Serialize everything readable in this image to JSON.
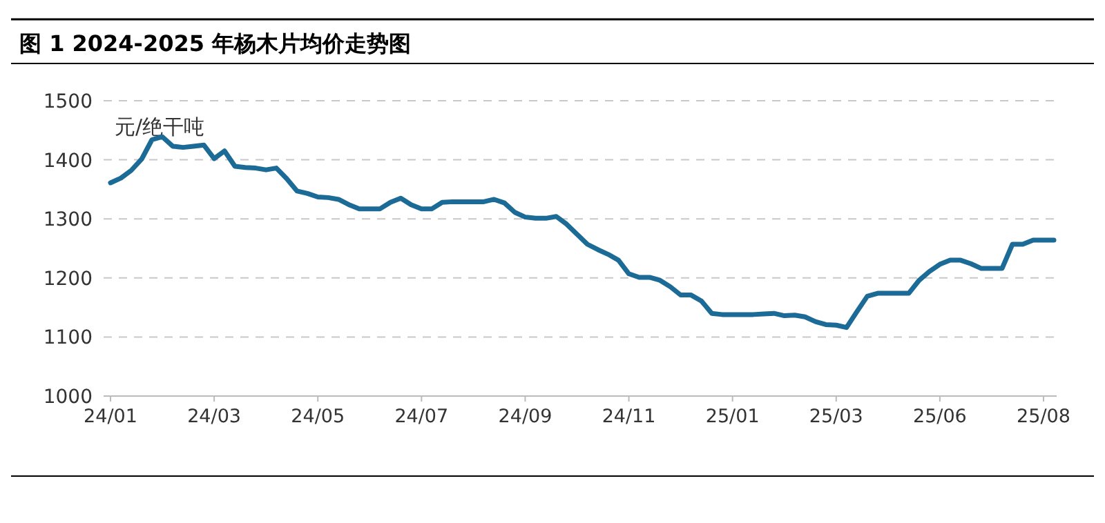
{
  "chart_data": {
    "type": "line",
    "title": "图 1 2024-2025 年杨木片均价走势图",
    "ylabel": "元/绝干吨",
    "categories": [
      "24/01",
      null,
      null,
      null,
      null,
      null,
      null,
      null,
      null,
      null,
      "24/03",
      null,
      null,
      null,
      null,
      null,
      null,
      null,
      null,
      null,
      "24/05",
      null,
      null,
      null,
      null,
      null,
      null,
      null,
      null,
      null,
      "24/07",
      null,
      null,
      null,
      null,
      null,
      null,
      null,
      null,
      null,
      "24/09",
      null,
      null,
      null,
      null,
      null,
      null,
      null,
      null,
      null,
      "24/11",
      null,
      null,
      null,
      null,
      null,
      null,
      null,
      null,
      null,
      "25/01",
      null,
      null,
      null,
      null,
      null,
      null,
      null,
      null,
      null,
      "25/03",
      null,
      null,
      null,
      null,
      null,
      null,
      null,
      null,
      null,
      "25/06",
      null,
      null,
      null,
      null,
      null,
      null,
      null,
      null,
      null,
      "25/08",
      null
    ],
    "ylim": [
      1000,
      1500
    ],
    "yticks": [
      1000,
      1100,
      1200,
      1300,
      1400,
      1500
    ],
    "grid": "y",
    "marker": "none",
    "line_style": "solid",
    "series": [
      {
        "color": "#1c6b96",
        "values": [
          1361,
          1369,
          1382,
          1401,
          1434,
          1439,
          1423,
          1421,
          1423,
          1425,
          1402,
          1415,
          1389,
          1387,
          1386,
          1383,
          1386,
          1368,
          1347,
          1343,
          1337,
          1336,
          1333,
          1324,
          1317,
          1317,
          1317,
          1328,
          1335,
          1324,
          1317,
          1317,
          1328,
          1329,
          1329,
          1329,
          1329,
          1333,
          1327,
          1311,
          1303,
          1301,
          1301,
          1304,
          1291,
          1274,
          1257,
          1248,
          1240,
          1230,
          1207,
          1201,
          1201,
          1196,
          1185,
          1171,
          1171,
          1161,
          1140,
          1138,
          1138,
          1138,
          1138,
          1139,
          1140,
          1136,
          1137,
          1134,
          1126,
          1121,
          1120,
          1116,
          1143,
          1169,
          1174,
          1174,
          1174,
          1174,
          1196,
          1211,
          1223,
          1230,
          1230,
          1224,
          1216,
          1216,
          1216,
          1257,
          1257,
          1264,
          1264,
          1264
        ]
      }
    ]
  }
}
